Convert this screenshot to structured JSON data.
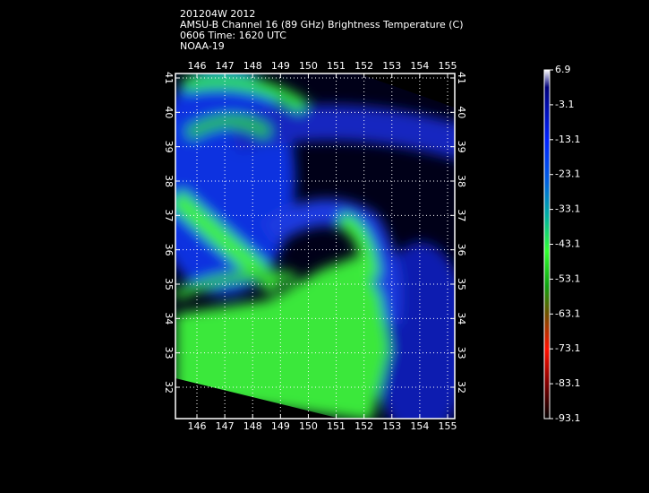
{
  "header": {
    "lines": [
      "201204W 2012",
      "AMSU-B Channel 16 (89 GHz) Brightness Temperature (C)",
      "0606 Time: 1620 UTC",
      "NOAA-19"
    ]
  },
  "map": {
    "lon_ticks": [
      146,
      147,
      148,
      149,
      150,
      151,
      152,
      153,
      154,
      155
    ],
    "lat_ticks": [
      41,
      40,
      39,
      38,
      37,
      36,
      35,
      34,
      33,
      32
    ]
  },
  "colorbar": {
    "ticks": [
      6.9,
      -3.1,
      -13.1,
      -23.1,
      -33.1,
      -43.1,
      -53.1,
      -63.1,
      -73.1,
      -83.1,
      -93.1
    ]
  }
}
